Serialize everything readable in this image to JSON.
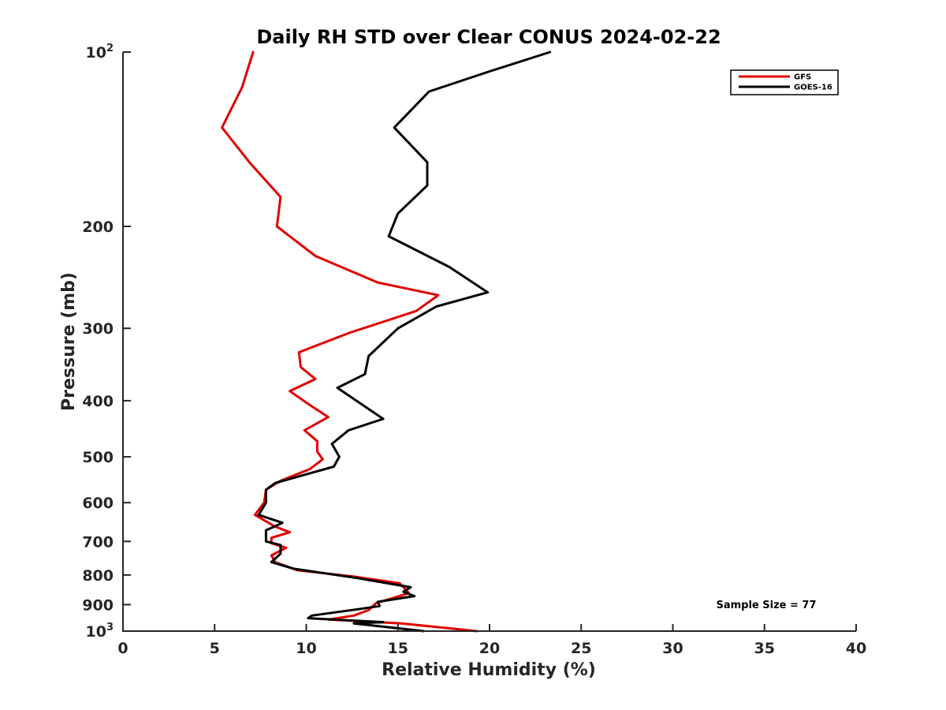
{
  "chart_data": {
    "type": "line",
    "title": "Daily RH STD over Clear CONUS 2024-02-22",
    "xlabel": "Relative Humidity (%)",
    "ylabel": "Pressure (mb)",
    "xlim": [
      0,
      40
    ],
    "ylim": [
      100,
      1000
    ],
    "y_scale": "log",
    "y_reversed": true,
    "grid": false,
    "legend_position": "top-right",
    "annotation": "Sample Size = 77",
    "x_ticks": [
      0,
      5,
      10,
      15,
      20,
      25,
      30,
      35,
      40
    ],
    "x_tick_labels": [
      "0",
      "5",
      "10",
      "15",
      "20",
      "25",
      "30",
      "35",
      "40"
    ],
    "y_ticks": [
      {
        "value": 100,
        "base": "10",
        "exp": "2"
      },
      {
        "value": 200,
        "label": "200"
      },
      {
        "value": 300,
        "label": "300"
      },
      {
        "value": 400,
        "label": "400"
      },
      {
        "value": 500,
        "label": "500"
      },
      {
        "value": 600,
        "label": "600"
      },
      {
        "value": 700,
        "label": "700"
      },
      {
        "value": 800,
        "label": "800"
      },
      {
        "value": 900,
        "label": "900"
      },
      {
        "value": 1000,
        "base": "10",
        "exp": "3"
      }
    ],
    "series": [
      {
        "name": "GFS",
        "color": "#e00000",
        "points": [
          [
            7.1,
            100
          ],
          [
            6.5,
            115
          ],
          [
            5.4,
            135
          ],
          [
            6.9,
            155
          ],
          [
            8.6,
            178
          ],
          [
            8.4,
            200
          ],
          [
            10.5,
            225
          ],
          [
            13.9,
            250
          ],
          [
            17.2,
            263
          ],
          [
            16.0,
            280
          ],
          [
            12.4,
            305
          ],
          [
            9.6,
            330
          ],
          [
            9.7,
            350
          ],
          [
            10.5,
            367
          ],
          [
            9.1,
            385
          ],
          [
            10.1,
            405
          ],
          [
            11.2,
            427
          ],
          [
            9.9,
            450
          ],
          [
            10.6,
            470
          ],
          [
            10.6,
            490
          ],
          [
            10.9,
            505
          ],
          [
            10.2,
            525
          ],
          [
            8.6,
            550
          ],
          [
            7.8,
            570
          ],
          [
            7.7,
            600
          ],
          [
            7.2,
            630
          ],
          [
            8.3,
            660
          ],
          [
            9.1,
            675
          ],
          [
            8.1,
            690
          ],
          [
            8.1,
            705
          ],
          [
            8.9,
            718
          ],
          [
            8.1,
            740
          ],
          [
            8.3,
            760
          ],
          [
            9.5,
            785
          ],
          [
            12.6,
            805
          ],
          [
            15.1,
            827
          ],
          [
            15.3,
            840
          ],
          [
            15.6,
            860
          ],
          [
            13.8,
            895
          ],
          [
            13.4,
            920
          ],
          [
            12.6,
            940
          ],
          [
            11.2,
            955
          ],
          [
            15.2,
            970
          ],
          [
            19.3,
            1000
          ]
        ]
      },
      {
        "name": "GOES-16",
        "color": "#000000",
        "points": [
          [
            23.3,
            100
          ],
          [
            20.0,
            108
          ],
          [
            16.7,
            117
          ],
          [
            14.8,
            135
          ],
          [
            16.6,
            155
          ],
          [
            16.6,
            170
          ],
          [
            15.0,
            190
          ],
          [
            14.5,
            208
          ],
          [
            17.8,
            235
          ],
          [
            19.9,
            260
          ],
          [
            17.1,
            275
          ],
          [
            15.0,
            300
          ],
          [
            13.4,
            335
          ],
          [
            13.2,
            360
          ],
          [
            11.7,
            380
          ],
          [
            14.2,
            430
          ],
          [
            12.3,
            450
          ],
          [
            11.4,
            475
          ],
          [
            11.8,
            500
          ],
          [
            11.5,
            520
          ],
          [
            8.3,
            555
          ],
          [
            7.8,
            570
          ],
          [
            7.8,
            600
          ],
          [
            7.4,
            630
          ],
          [
            8.7,
            650
          ],
          [
            7.8,
            670
          ],
          [
            7.8,
            700
          ],
          [
            8.6,
            710
          ],
          [
            8.6,
            735
          ],
          [
            8.1,
            760
          ],
          [
            9.3,
            780
          ],
          [
            12.8,
            810
          ],
          [
            15.7,
            840
          ],
          [
            15.3,
            855
          ],
          [
            15.9,
            870
          ],
          [
            13.9,
            890
          ],
          [
            14.0,
            905
          ],
          [
            13.0,
            915
          ],
          [
            10.3,
            940
          ],
          [
            10.1,
            950
          ],
          [
            14.2,
            965
          ],
          [
            12.6,
            970
          ],
          [
            16.4,
            1000
          ]
        ]
      }
    ]
  }
}
